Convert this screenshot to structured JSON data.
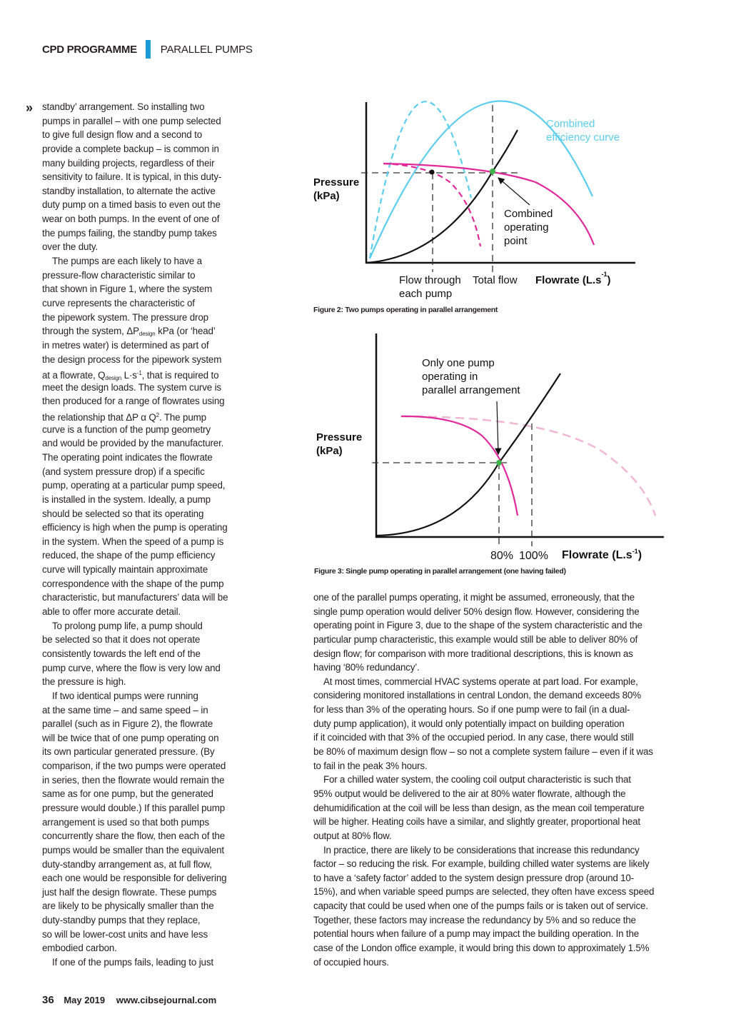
{
  "header": {
    "section": "CPD PROGRAMME",
    "topic": "PARALLEL PUMPS",
    "accent_color": "#1b9ad6"
  },
  "continuation_icon": "double-chevron-right-icon",
  "left_column": [
    {
      "t": "standby’ arrangement. So installing two"
    },
    {
      "t": "pumps in parallel – with one pump selected"
    },
    {
      "t": "to give full design flow and a second to"
    },
    {
      "t": "provide a complete backup – is common in"
    },
    {
      "t": "many building projects, regardless of their"
    },
    {
      "t": "sensitivity to failure. It is typical, in this duty-"
    },
    {
      "t": "standby installation, to alternate the active"
    },
    {
      "t": "duty pump on a timed basis to even out the"
    },
    {
      "t": "wear on both pumps. In the event of one of"
    },
    {
      "t": "the pumps failing, the standby pump takes"
    },
    {
      "t": "over the duty."
    },
    {
      "t": "The pumps are each likely to have a",
      "indent": true
    },
    {
      "t": "pressure-flow characteristic similar to"
    },
    {
      "t": "that shown in Figure 1, where the system"
    },
    {
      "t": "curve represents the characteristic of"
    },
    {
      "t": "the pipework system. The pressure drop"
    },
    {
      "t": "through the system, ΔP",
      "sub": "design",
      "t2": " kPa (or ‘head’"
    },
    {
      "t": "in metres water) is determined as part of"
    },
    {
      "t": "the design process for the pipework system"
    },
    {
      "t": "at a flowrate, Q",
      "sub": "design",
      "t2": " L·s",
      "sup": "-1",
      "t3": ", that is required to"
    },
    {
      "t": "meet the design loads. The system curve is"
    },
    {
      "t": "then produced for a range of flowrates using"
    },
    {
      "t": "the relationship that ΔP α Q",
      "sup": "2",
      "t3": ". The pump"
    },
    {
      "t": "curve is a function of the pump geometry"
    },
    {
      "t": "and would be provided by the manufacturer."
    },
    {
      "t": "The operating point indicates the flowrate"
    },
    {
      "t": "(and system pressure drop) if a specific"
    },
    {
      "t": "pump, operating at a particular pump speed,"
    },
    {
      "t": "is installed in the system. Ideally, a pump"
    },
    {
      "t": "should be selected so that its operating"
    },
    {
      "t": "efficiency is high when the pump is operating"
    },
    {
      "t": "in the system. When the speed of a pump is"
    },
    {
      "t": "reduced, the shape of the pump efficiency"
    },
    {
      "t": "curve will typically maintain approximate"
    },
    {
      "t": "correspondence with the shape of the pump"
    },
    {
      "t": "characteristic, but manufacturers’ data will be"
    },
    {
      "t": "able to offer more accurate detail."
    },
    {
      "t": "To prolong pump life, a pump should",
      "indent": true
    },
    {
      "t": "be selected so that it does not operate"
    },
    {
      "t": "consistently towards the left end of the"
    },
    {
      "t": "pump curve, where the flow is very low and"
    },
    {
      "t": "the pressure is high."
    },
    {
      "t": "If two identical pumps were running",
      "indent": true
    },
    {
      "t": "at the same time – and same speed – in"
    },
    {
      "t": "parallel (such as in Figure 2), the flowrate"
    },
    {
      "t": "will be twice that of one pump operating on"
    },
    {
      "t": "its own particular generated pressure. (By"
    },
    {
      "t": "comparison, if the two pumps were operated"
    },
    {
      "t": "in series, then the flowrate would remain the"
    },
    {
      "t": "same as for one pump, but the generated"
    },
    {
      "t": "pressure would double.) If this parallel pump"
    },
    {
      "t": "arrangement is used so that both pumps"
    },
    {
      "t": "concurrently share the flow, then each of the"
    },
    {
      "t": "pumps would be smaller than the equivalent"
    },
    {
      "t": "duty-standby arrangement as, at full flow,"
    },
    {
      "t": "each one would be responsible for delivering"
    },
    {
      "t": "just half the design flowrate. These pumps"
    },
    {
      "t": "are likely to be physically smaller than the"
    },
    {
      "t": "duty-standby pumps that they replace,"
    },
    {
      "t": "so will be lower-cost units and have less"
    },
    {
      "t": "embodied carbon."
    },
    {
      "t": "If one of the pumps fails, leading to just",
      "indent": true
    }
  ],
  "right_column": [
    {
      "t": "one of the parallel pumps operating, it might be assumed, erroneously, that the"
    },
    {
      "t": "single pump operation would deliver 50% design flow. However, considering the"
    },
    {
      "t": "operating point in Figure 3, due to the shape of the system characteristic and the"
    },
    {
      "t": "particular pump characteristic, this example would still be able to deliver 80% of"
    },
    {
      "t": "design flow; for comparison with more traditional descriptions, this is known as"
    },
    {
      "t": "having ‘80% redundancy’."
    },
    {
      "t": "At most times, commercial HVAC systems operate at part load. For example,",
      "indent": true
    },
    {
      "t": "considering monitored installations in central London, the demand exceeds 80%"
    },
    {
      "t": "for less than 3% of the operating hours. So if one pump were to fail (in a dual-"
    },
    {
      "t": "duty pump application), it would only potentially impact on building operation"
    },
    {
      "t": "if it coincided with that 3% of the occupied period. In any case, there would still"
    },
    {
      "t": "be 80% of maximum design flow – so not a complete system failure – even if it was"
    },
    {
      "t": "to fail in the peak 3% hours."
    },
    {
      "t": "For a chilled water system, the cooling coil output characteristic is such that",
      "indent": true
    },
    {
      "t": "95% output would be delivered to the air at 80% water flowrate, although the"
    },
    {
      "t": "dehumidification at the coil will be less than design, as the mean coil temperature"
    },
    {
      "t": "will be higher. Heating coils have a similar, and slightly greater, proportional heat"
    },
    {
      "t": "output at 80% flow."
    },
    {
      "t": "In practice, there are likely to be considerations that increase this redundancy",
      "indent": true
    },
    {
      "t": "factor – so reducing the risk. For example, building chilled water systems are likely"
    },
    {
      "t": "to have a ‘safety factor’ added to the system design pressure drop (around 10-"
    },
    {
      "t": "15%), and when variable speed pumps are selected, they often have excess speed"
    },
    {
      "t": "capacity that could be used when one of the pumps fails or is taken out of service."
    },
    {
      "t": "Together, these factors may increase the redundancy by 5% and so reduce the"
    },
    {
      "t": "potential hours when failure of a pump may impact the building operation. In the"
    },
    {
      "t": "case of the London office example, it would bring this down to approximately 1.5%"
    },
    {
      "t": "of occupied hours."
    }
  ],
  "figure2": {
    "ylabel": [
      "Pressure",
      "(kPa)"
    ],
    "xlabel": "Flowrate (L.s",
    "xlabel_sup": "-1",
    "xlabel_end": ")",
    "efficiency_label": [
      "Combined",
      "efficiency curve"
    ],
    "operating_label": [
      "Combined",
      "operating",
      "point"
    ],
    "flow_each_label": [
      "Flow through",
      "each pump"
    ],
    "total_flow_label": "Total flow",
    "caption": "Figure 2: Two pumps operating in parallel arrangement",
    "colors": {
      "efficiency": "#5bcdee",
      "pump": "#e0289a",
      "system": "#111111",
      "point": "#3cb44a"
    }
  },
  "figure3": {
    "ylabel": [
      "Pressure",
      "(kPa)"
    ],
    "xlabel": "Flowrate (L.s",
    "xlabel_sup": "-1",
    "xlabel_end": ")",
    "annotation": [
      "Only one pump",
      "operating in",
      "parallel arrangement"
    ],
    "tick_80": "80%",
    "tick_100": "100%",
    "caption": "Figure 3: Single pump operating in parallel arrangement (one having failed)",
    "colors": {
      "pump": "#e0289a",
      "combined_dashed": "#f0b6d6",
      "system": "#111111",
      "point": "#3cb44a"
    }
  },
  "footer": {
    "page": "36",
    "date": "May 2019",
    "url": "www.cibsejournal.com"
  }
}
